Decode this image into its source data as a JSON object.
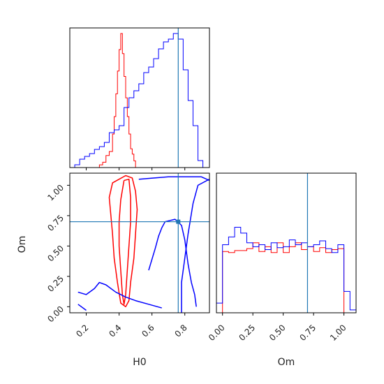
{
  "chart_data": {
    "type": "corner",
    "parameters": [
      "H0",
      "Om"
    ],
    "colors": {
      "red": "#ff0000",
      "blue": "#0000ff",
      "truth": "#1f77b4"
    },
    "truth": {
      "H0": 0.76,
      "Om": 0.7
    },
    "panels": {
      "h0_hist": {
        "type": "histogram",
        "xlim": [
          0.1,
          0.95
        ],
        "ticks": [
          0.2,
          0.4,
          0.6,
          0.8
        ],
        "series": [
          {
            "color": "red",
            "bins": [
              0.28,
              0.3,
              0.32,
              0.34,
              0.36,
              0.37,
              0.38,
              0.39,
              0.4,
              0.41,
              0.42,
              0.43,
              0.44,
              0.45,
              0.46,
              0.47,
              0.48,
              0.49,
              0.5,
              0.51
            ],
            "heights": [
              2,
              4,
              9,
              12,
              25,
              38,
              55,
              72,
              88,
              100,
              85,
              68,
              52,
              38,
              25,
              14,
              10,
              5,
              0
            ]
          },
          {
            "color": "blue",
            "bins": [
              0.1,
              0.13,
              0.16,
              0.19,
              0.22,
              0.25,
              0.28,
              0.31,
              0.34,
              0.37,
              0.4,
              0.43,
              0.46,
              0.49,
              0.52,
              0.55,
              0.58,
              0.61,
              0.64,
              0.67,
              0.7,
              0.73,
              0.76,
              0.79,
              0.82,
              0.85,
              0.88,
              0.91,
              0.94
            ],
            "heights": [
              0,
              2,
              6,
              8,
              10,
              13,
              15,
              18,
              25,
              27,
              30,
              43,
              50,
              55,
              60,
              68,
              72,
              78,
              85,
              90,
              92,
              96,
              92,
              70,
              48,
              30,
              5,
              0
            ]
          }
        ]
      },
      "joint": {
        "type": "contour",
        "xlim": [
          0.1,
          0.95
        ],
        "ylim": [
          -0.05,
          1.1
        ],
        "xticks": [
          0.2,
          0.4,
          0.6,
          0.8
        ],
        "yticks": [
          0.0,
          0.25,
          0.5,
          0.75,
          1.0
        ],
        "series": [
          {
            "color": "red",
            "contours": [
              [
                [
                  0.4,
                  1.05
                ],
                [
                  0.44,
                  1.08
                ],
                [
                  0.48,
                  1.06
                ],
                [
                  0.5,
                  0.95
                ],
                [
                  0.51,
                  0.8
                ],
                [
                  0.5,
                  0.6
                ],
                [
                  0.49,
                  0.4
                ],
                [
                  0.47,
                  0.2
                ],
                [
                  0.46,
                  0.05
                ],
                [
                  0.44,
                  0.0
                ],
                [
                  0.41,
                  0.03
                ],
                [
                  0.39,
                  0.2
                ],
                [
                  0.37,
                  0.4
                ],
                [
                  0.36,
                  0.6
                ],
                [
                  0.35,
                  0.75
                ],
                [
                  0.34,
                  0.9
                ],
                [
                  0.36,
                  1.02
                ],
                [
                  0.4,
                  1.05
                ]
              ],
              [
                [
                  0.43,
                  1.04
                ],
                [
                  0.46,
                  1.05
                ],
                [
                  0.47,
                  0.9
                ],
                [
                  0.47,
                  0.7
                ],
                [
                  0.46,
                  0.5
                ],
                [
                  0.45,
                  0.3
                ],
                [
                  0.44,
                  0.1
                ],
                [
                  0.43,
                  0.02
                ],
                [
                  0.42,
                  0.1
                ],
                [
                  0.41,
                  0.3
                ],
                [
                  0.4,
                  0.5
                ],
                [
                  0.4,
                  0.7
                ],
                [
                  0.41,
                  0.88
                ],
                [
                  0.43,
                  1.04
                ]
              ]
            ]
          },
          {
            "color": "blue",
            "contours": [
              [
                [
                  0.52,
                  1.05
                ],
                [
                  0.7,
                  1.07
                ],
                [
                  0.9,
                  1.07
                ],
                [
                  0.95,
                  1.04
                ]
              ],
              [
                [
                  0.58,
                  0.3
                ],
                [
                  0.62,
                  0.48
                ],
                [
                  0.64,
                  0.58
                ],
                [
                  0.66,
                  0.65
                ],
                [
                  0.68,
                  0.7
                ],
                [
                  0.74,
                  0.72
                ],
                [
                  0.78,
                  0.67
                ],
                [
                  0.8,
                  0.55
                ],
                [
                  0.82,
                  0.35
                ],
                [
                  0.84,
                  0.2
                ],
                [
                  0.86,
                  0.1
                ],
                [
                  0.87,
                  0.0
                ]
              ],
              [
                [
                  0.15,
                  0.12
                ],
                [
                  0.2,
                  0.1
                ],
                [
                  0.25,
                  0.15
                ],
                [
                  0.28,
                  0.2
                ],
                [
                  0.32,
                  0.18
                ],
                [
                  0.38,
                  0.12
                ],
                [
                  0.44,
                  0.08
                ],
                [
                  0.5,
                  0.05
                ],
                [
                  0.58,
                  0.02
                ],
                [
                  0.66,
                  -0.01
                ]
              ],
              [
                [
                  0.15,
                  0.02
                ],
                [
                  0.2,
                  -0.03
                ]
              ],
              [
                [
                  0.78,
                  -0.05
                ],
                [
                  0.78,
                  0.2
                ],
                [
                  0.8,
                  0.4
                ],
                [
                  0.82,
                  0.6
                ],
                [
                  0.85,
                  0.85
                ],
                [
                  0.88,
                  1.0
                ],
                [
                  0.95,
                  1.05
                ]
              ]
            ]
          }
        ]
      },
      "om_hist": {
        "type": "histogram",
        "xlim": [
          -0.05,
          1.1
        ],
        "ticks": [
          0.0,
          0.25,
          0.5,
          0.75,
          1.0
        ],
        "series": [
          {
            "color": "red",
            "bins": [
              0.0,
              0.05,
              0.1,
              0.15,
              0.2,
              0.25,
              0.3,
              0.35,
              0.4,
              0.45,
              0.5,
              0.55,
              0.6,
              0.65,
              0.7,
              0.75,
              0.8,
              0.85,
              0.9,
              0.95,
              1.0
            ],
            "heights": [
              63,
              62,
              64,
              64,
              66,
              72,
              63,
              68,
              62,
              72,
              62,
              68,
              72,
              65,
              68,
              63,
              67,
              62,
              65,
              66
            ]
          },
          {
            "color": "blue",
            "bins": [
              -0.05,
              0.0,
              0.05,
              0.1,
              0.15,
              0.2,
              0.25,
              0.3,
              0.35,
              0.4,
              0.45,
              0.5,
              0.55,
              0.6,
              0.65,
              0.7,
              0.75,
              0.8,
              0.85,
              0.9,
              0.95,
              1.0,
              1.05,
              1.1
            ],
            "heights": [
              10,
              70,
              78,
              88,
              82,
              72,
              68,
              70,
              65,
              72,
              67,
              68,
              75,
              70,
              72,
              68,
              70,
              74,
              66,
              62,
              70,
              22,
              3
            ]
          }
        ]
      }
    },
    "xlabel_h0": "H0",
    "xlabel_om": "Om",
    "ylabel_om": "Om"
  }
}
